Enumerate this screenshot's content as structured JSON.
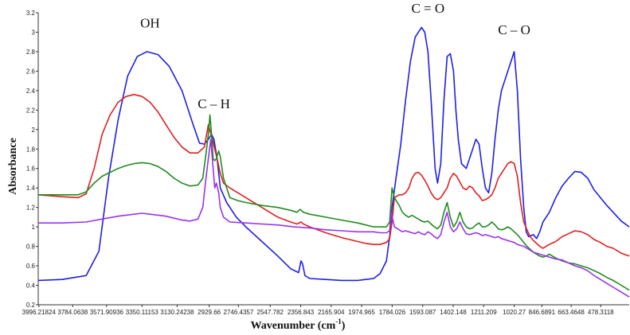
{
  "chart_data": {
    "type": "line",
    "title": "",
    "xlabel_main": "Wavenumber (cm",
    "xlabel_sup": "-1",
    "xlabel_tail": ")",
    "ylabel": "Absorbance",
    "x_reversed": true,
    "xlim": [
      4000,
      300
    ],
    "ylim": [
      0.2,
      3.2
    ],
    "grid": false,
    "legend": "none",
    "x_tick_labels": [
      "3996.21824",
      "3784.0638",
      "3571.90936",
      "3350.11153",
      "3130.24238",
      "2929.66",
      "2746.4357",
      "2547.782",
      "2356.843",
      "2165.904",
      "1974.965",
      "1784.026",
      "1593.087",
      "1402.148",
      "1211.209",
      "1020.27",
      "846.6891",
      "663.4648",
      "478.3118"
    ],
    "x_tick_values": [
      3996.21824,
      3784.0638,
      3571.90936,
      3350.11153,
      3130.24238,
      2929.66,
      2746.4357,
      2547.782,
      2356.843,
      2165.904,
      1974.965,
      1784.026,
      1593.087,
      1402.148,
      1211.209,
      1020.27,
      846.6891,
      663.4648,
      478.3118
    ],
    "y_ticks": [
      "0.2",
      "0.4",
      "0.6",
      "0.8",
      "1",
      "1.2",
      "1.4",
      "1.6",
      "1.8",
      "2",
      "2.2",
      "2.4",
      "2.6",
      "2.8",
      "3",
      "3.2"
    ],
    "annotations": [
      {
        "text": "OH",
        "x": 3300,
        "y": 3.05
      },
      {
        "text": "C – H",
        "x": 2900,
        "y": 2.22
      },
      {
        "text": "C = O",
        "x": 1560,
        "y": 3.2
      },
      {
        "text": "C – O",
        "x": 1020,
        "y": 2.98
      }
    ],
    "series": [
      {
        "color": "#1f1fe6",
        "x": [
          4000,
          3850,
          3700,
          3620,
          3560,
          3500,
          3440,
          3380,
          3320,
          3250,
          3180,
          3100,
          3030,
          2990,
          2960,
          2935,
          2915,
          2900,
          2880,
          2860,
          2820,
          2760,
          2700,
          2600,
          2500,
          2420,
          2370,
          2355,
          2345,
          2330,
          2300,
          2200,
          2100,
          2000,
          1950,
          1900,
          1860,
          1820,
          1800,
          1785,
          1760,
          1730,
          1700,
          1670,
          1640,
          1600,
          1580,
          1560,
          1540,
          1515,
          1500,
          1480,
          1460,
          1440,
          1420,
          1400,
          1385,
          1370,
          1350,
          1320,
          1290,
          1260,
          1240,
          1220,
          1200,
          1180,
          1160,
          1140,
          1120,
          1100,
          1080,
          1060,
          1040,
          1020,
          1000,
          980,
          960,
          945,
          930,
          900,
          880,
          860,
          840,
          820,
          800,
          760,
          720,
          680,
          640,
          600,
          560,
          520,
          480,
          440,
          400,
          350,
          300
        ],
        "y": [
          0.45,
          0.46,
          0.5,
          0.75,
          1.5,
          2.1,
          2.55,
          2.75,
          2.8,
          2.77,
          2.65,
          2.4,
          2.05,
          1.86,
          1.85,
          1.9,
          1.95,
          1.9,
          1.7,
          1.4,
          1.25,
          1.1,
          1.0,
          0.85,
          0.7,
          0.57,
          0.53,
          0.65,
          0.62,
          0.5,
          0.47,
          0.46,
          0.45,
          0.45,
          0.46,
          0.47,
          0.52,
          0.65,
          0.9,
          1.2,
          1.5,
          1.85,
          2.3,
          2.7,
          2.95,
          3.05,
          3.0,
          2.8,
          2.3,
          1.6,
          1.45,
          1.65,
          2.3,
          2.75,
          2.78,
          2.6,
          2.2,
          1.9,
          1.65,
          1.6,
          1.75,
          1.9,
          1.85,
          1.6,
          1.4,
          1.35,
          1.55,
          1.9,
          2.2,
          2.4,
          2.5,
          2.6,
          2.7,
          2.8,
          2.4,
          1.7,
          1.2,
          0.95,
          0.9,
          0.92,
          0.88,
          0.95,
          1.05,
          1.1,
          1.15,
          1.3,
          1.42,
          1.5,
          1.57,
          1.56,
          1.5,
          1.38,
          1.3,
          1.22,
          1.15,
          1.06,
          1.0
        ]
      },
      {
        "color": "#e02020",
        "x": [
          4000,
          3850,
          3750,
          3700,
          3650,
          3600,
          3550,
          3500,
          3450,
          3400,
          3350,
          3300,
          3250,
          3200,
          3150,
          3100,
          3050,
          3000,
          2960,
          2935,
          2910,
          2895,
          2880,
          2860,
          2840,
          2800,
          2750,
          2700,
          2600,
          2500,
          2420,
          2380,
          2355,
          2340,
          2300,
          2200,
          2100,
          2000,
          1950,
          1900,
          1860,
          1820,
          1800,
          1785,
          1770,
          1740,
          1720,
          1700,
          1680,
          1660,
          1640,
          1620,
          1600,
          1580,
          1560,
          1540,
          1520,
          1500,
          1480,
          1460,
          1440,
          1420,
          1400,
          1380,
          1360,
          1340,
          1320,
          1300,
          1280,
          1260,
          1240,
          1220,
          1200,
          1180,
          1160,
          1140,
          1120,
          1100,
          1080,
          1060,
          1040,
          1020,
          1000,
          980,
          960,
          940,
          920,
          900,
          880,
          860,
          840,
          820,
          800,
          760,
          720,
          680,
          640,
          600,
          560,
          520,
          480,
          440,
          400,
          350,
          300
        ],
        "y": [
          1.33,
          1.31,
          1.3,
          1.34,
          1.6,
          1.95,
          2.15,
          2.28,
          2.34,
          2.36,
          2.34,
          2.28,
          2.18,
          2.05,
          1.92,
          1.82,
          1.76,
          1.76,
          1.82,
          2.05,
          1.9,
          1.8,
          1.7,
          1.55,
          1.45,
          1.4,
          1.35,
          1.3,
          1.2,
          1.1,
          1.05,
          1.03,
          1.05,
          1.03,
          1.0,
          0.94,
          0.89,
          0.85,
          0.83,
          0.82,
          0.82,
          0.84,
          0.88,
          1.05,
          1.3,
          1.33,
          1.33,
          1.35,
          1.4,
          1.5,
          1.55,
          1.56,
          1.53,
          1.48,
          1.42,
          1.35,
          1.3,
          1.28,
          1.3,
          1.35,
          1.4,
          1.5,
          1.55,
          1.52,
          1.46,
          1.4,
          1.38,
          1.42,
          1.4,
          1.35,
          1.32,
          1.27,
          1.28,
          1.3,
          1.33,
          1.4,
          1.5,
          1.55,
          1.6,
          1.65,
          1.67,
          1.65,
          1.52,
          1.25,
          1.05,
          0.97,
          0.9,
          0.86,
          0.83,
          0.8,
          0.78,
          0.8,
          0.82,
          0.85,
          0.9,
          0.93,
          0.96,
          0.95,
          0.92,
          0.87,
          0.84,
          0.8,
          0.78,
          0.73,
          0.7
        ]
      },
      {
        "color": "#1e8c1e",
        "x": [
          4000,
          3850,
          3750,
          3700,
          3650,
          3600,
          3550,
          3500,
          3450,
          3400,
          3350,
          3300,
          3250,
          3200,
          3150,
          3100,
          3050,
          3000,
          2970,
          2950,
          2935,
          2925,
          2915,
          2905,
          2895,
          2885,
          2870,
          2860,
          2840,
          2800,
          2750,
          2700,
          2600,
          2500,
          2420,
          2380,
          2360,
          2340,
          2300,
          2200,
          2100,
          2000,
          1950,
          1900,
          1860,
          1820,
          1800,
          1785,
          1770,
          1740,
          1720,
          1700,
          1680,
          1660,
          1640,
          1620,
          1600,
          1580,
          1560,
          1540,
          1520,
          1500,
          1480,
          1460,
          1440,
          1420,
          1400,
          1380,
          1360,
          1340,
          1320,
          1300,
          1280,
          1260,
          1240,
          1220,
          1200,
          1180,
          1160,
          1140,
          1120,
          1100,
          1080,
          1060,
          1040,
          1020,
          1000,
          980,
          960,
          940,
          920,
          900,
          880,
          860,
          840,
          820,
          800,
          760,
          720,
          680,
          640,
          600,
          560,
          520,
          480,
          440,
          400,
          350,
          300
        ],
        "y": [
          1.33,
          1.33,
          1.33,
          1.36,
          1.45,
          1.52,
          1.56,
          1.6,
          1.63,
          1.65,
          1.66,
          1.65,
          1.62,
          1.57,
          1.5,
          1.45,
          1.42,
          1.43,
          1.5,
          1.75,
          1.95,
          2.15,
          1.95,
          1.7,
          1.68,
          1.7,
          1.78,
          1.72,
          1.5,
          1.3,
          1.27,
          1.25,
          1.22,
          1.2,
          1.17,
          1.15,
          1.18,
          1.15,
          1.13,
          1.1,
          1.07,
          1.04,
          1.02,
          1.0,
          1.0,
          1.0,
          1.05,
          1.4,
          1.3,
          1.22,
          1.15,
          1.12,
          1.1,
          1.12,
          1.1,
          1.08,
          1.06,
          1.05,
          1.06,
          1.03,
          1.0,
          0.98,
          1.02,
          1.15,
          1.25,
          1.1,
          1.0,
          1.05,
          1.15,
          1.05,
          1.0,
          0.98,
          0.99,
          1.02,
          1.04,
          1.0,
          1.0,
          1.02,
          1.05,
          1.02,
          0.98,
          0.97,
          0.98,
          1.0,
          0.98,
          0.95,
          0.92,
          0.88,
          0.84,
          0.8,
          0.77,
          0.74,
          0.72,
          0.7,
          0.69,
          0.7,
          0.72,
          0.68,
          0.65,
          0.63,
          0.62,
          0.6,
          0.58,
          0.55,
          0.52,
          0.48,
          0.45,
          0.4,
          0.35
        ]
      },
      {
        "color": "#9933ee",
        "x": [
          4000,
          3850,
          3700,
          3600,
          3500,
          3400,
          3350,
          3300,
          3200,
          3100,
          3050,
          3000,
          2970,
          2950,
          2935,
          2920,
          2905,
          2895,
          2885,
          2870,
          2860,
          2840,
          2800,
          2700,
          2600,
          2500,
          2400,
          2300,
          2200,
          2100,
          2000,
          1900,
          1860,
          1820,
          1800,
          1790,
          1770,
          1740,
          1720,
          1700,
          1680,
          1660,
          1640,
          1620,
          1600,
          1580,
          1560,
          1540,
          1520,
          1500,
          1480,
          1460,
          1440,
          1420,
          1400,
          1380,
          1360,
          1340,
          1320,
          1300,
          1280,
          1260,
          1240,
          1220,
          1200,
          1180,
          1160,
          1140,
          1120,
          1100,
          1080,
          1060,
          1040,
          1020,
          1000,
          980,
          960,
          940,
          920,
          900,
          880,
          860,
          840,
          820,
          800,
          760,
          720,
          680,
          640,
          600,
          560,
          520,
          480,
          440,
          400,
          350,
          300
        ],
        "y": [
          1.04,
          1.04,
          1.05,
          1.08,
          1.11,
          1.13,
          1.14,
          1.13,
          1.11,
          1.07,
          1.06,
          1.08,
          1.2,
          1.5,
          1.7,
          1.9,
          1.6,
          1.4,
          1.45,
          1.35,
          1.2,
          1.1,
          1.05,
          1.04,
          1.03,
          1.02,
          1.0,
          0.99,
          0.97,
          0.96,
          0.95,
          0.95,
          0.94,
          0.94,
          0.96,
          1.15,
          1.0,
          0.97,
          0.95,
          0.96,
          0.95,
          0.94,
          0.93,
          0.95,
          0.93,
          0.92,
          0.95,
          0.93,
          0.9,
          0.88,
          0.92,
          1.05,
          1.15,
          1.0,
          0.95,
          0.98,
          1.05,
          0.98,
          0.93,
          0.92,
          0.93,
          0.94,
          0.93,
          0.91,
          0.92,
          0.91,
          0.9,
          0.89,
          0.9,
          0.88,
          0.87,
          0.86,
          0.85,
          0.84,
          0.82,
          0.81,
          0.8,
          0.78,
          0.76,
          0.74,
          0.73,
          0.72,
          0.71,
          0.7,
          0.69,
          0.67,
          0.66,
          0.63,
          0.6,
          0.58,
          0.55,
          0.5,
          0.46,
          0.42,
          0.38,
          0.33,
          0.28
        ]
      }
    ]
  }
}
